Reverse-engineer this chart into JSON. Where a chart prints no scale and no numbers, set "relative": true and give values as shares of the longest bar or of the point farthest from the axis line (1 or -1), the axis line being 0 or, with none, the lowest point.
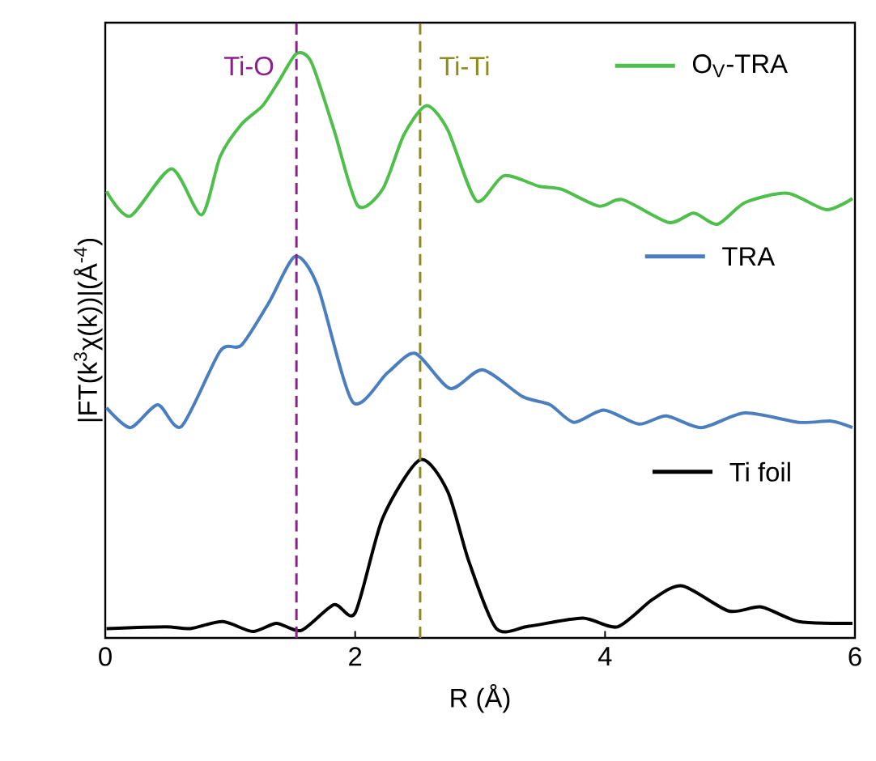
{
  "chart_data": {
    "type": "line",
    "relative": true,
    "xlabel": "R (Å)",
    "ylabel": "|FT(k$^{3}$χ(k))|(Å$^{-4}$)",
    "xlim": [
      0,
      6
    ],
    "xticks": [
      0,
      2,
      4,
      6
    ],
    "marker": "none",
    "legend": "right",
    "line_style": "solid",
    "series": [
      {
        "name": "O$_{V}$-TRA",
        "color": "#4dbf4a",
        "x": [
          0.01,
          0.2,
          0.53,
          0.77,
          0.92,
          1.09,
          1.26,
          1.39,
          1.53,
          1.65,
          1.83,
          2.02,
          2.22,
          2.39,
          2.57,
          2.74,
          2.97,
          3.19,
          3.47,
          3.65,
          3.95,
          4.14,
          4.51,
          4.71,
          4.9,
          5.12,
          5.46,
          5.77,
          5.98
        ],
        "values": [
          0.764,
          0.722,
          0.803,
          0.724,
          0.824,
          0.879,
          0.911,
          0.953,
          1.0,
          0.985,
          0.87,
          0.74,
          0.768,
          0.861,
          0.911,
          0.87,
          0.748,
          0.791,
          0.773,
          0.768,
          0.739,
          0.75,
          0.711,
          0.727,
          0.708,
          0.745,
          0.761,
          0.733,
          0.752
        ]
      },
      {
        "name": "TRA",
        "color": "#4a7ebf",
        "x": [
          0.01,
          0.2,
          0.42,
          0.61,
          0.92,
          1.09,
          1.31,
          1.52,
          1.7,
          1.98,
          2.26,
          2.48,
          2.76,
          3.02,
          3.34,
          3.56,
          3.75,
          3.99,
          4.27,
          4.49,
          4.77,
          5.12,
          5.55,
          5.81,
          5.98
        ],
        "values": [
          0.394,
          0.36,
          0.399,
          0.362,
          0.491,
          0.501,
          0.574,
          0.653,
          0.602,
          0.404,
          0.454,
          0.487,
          0.427,
          0.459,
          0.413,
          0.399,
          0.369,
          0.39,
          0.366,
          0.38,
          0.36,
          0.385,
          0.369,
          0.371,
          0.36
        ]
      },
      {
        "name": "Ti foil",
        "color": "#000000",
        "x": [
          0.01,
          0.48,
          0.68,
          0.94,
          1.18,
          1.37,
          1.57,
          1.83,
          2.0,
          2.22,
          2.52,
          2.74,
          2.91,
          3.13,
          3.39,
          3.82,
          4.1,
          4.38,
          4.62,
          4.99,
          5.25,
          5.55,
          5.98
        ],
        "values": [
          0.016,
          0.019,
          0.016,
          0.028,
          0.011,
          0.025,
          0.013,
          0.057,
          0.043,
          0.205,
          0.305,
          0.251,
          0.131,
          0.016,
          0.02,
          0.034,
          0.019,
          0.066,
          0.089,
          0.046,
          0.053,
          0.028,
          0.025
        ]
      }
    ],
    "ref_lines": [
      {
        "axis": "x",
        "value": 1.53,
        "label": "Ti-O",
        "color": "#8e1f8e",
        "line_style": "dashed"
      },
      {
        "axis": "x",
        "value": 2.52,
        "label": "Ti-Ti",
        "color": "#8c8c1e",
        "line_style": "dashed"
      }
    ]
  }
}
